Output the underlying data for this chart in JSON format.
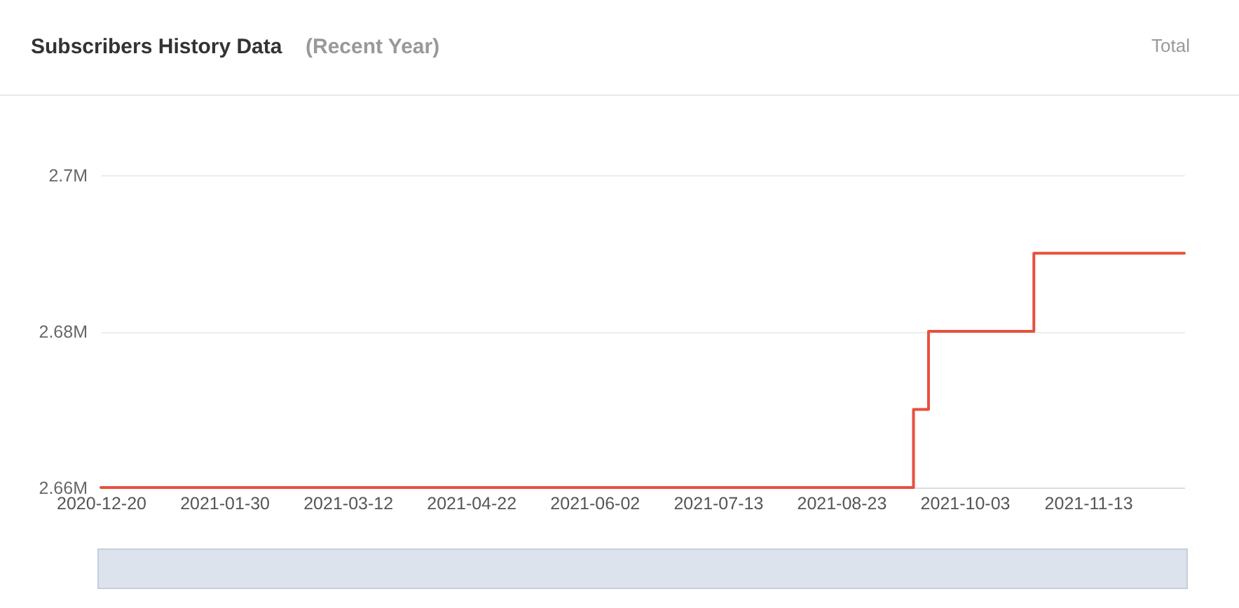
{
  "chart_data": {
    "type": "step",
    "title": "Subscribers History Data",
    "subtitle": "(Recent Year)",
    "annotations": [
      "Total"
    ],
    "x": [
      "2020-12-20",
      "2021-09-16",
      "2021-09-21",
      "2021-10-26",
      "2021-12-15"
    ],
    "series": [
      {
        "color": "#e8503e",
        "values": [
          2660000,
          2670000,
          2680000,
          2690000,
          2690000
        ]
      }
    ],
    "xlim": [
      "2020-12-20",
      "2021-12-15"
    ],
    "xticks": [
      "2020-12-20",
      "2021-01-30",
      "2021-03-12",
      "2021-04-22",
      "2021-06-02",
      "2021-07-13",
      "2021-08-23",
      "2021-10-03",
      "2021-11-13"
    ],
    "ylim": [
      2660000,
      2700000
    ],
    "yticks": [
      {
        "value": 2660000,
        "label": "2.66M"
      },
      {
        "value": 2680000,
        "label": "2.68M"
      },
      {
        "value": 2700000,
        "label": "2.7M"
      }
    ],
    "grid": "y",
    "line_style": "solid"
  }
}
